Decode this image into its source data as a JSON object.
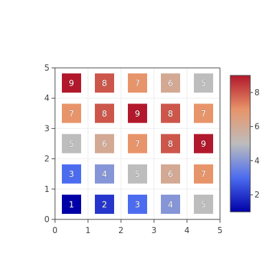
{
  "chart_data": {
    "type": "heatmap",
    "title": "",
    "xlabel": "",
    "ylabel": "",
    "x_ticks": [
      "0",
      "1",
      "2",
      "3",
      "4",
      "5"
    ],
    "y_ticks": [
      "0",
      "1",
      "2",
      "3",
      "4",
      "5"
    ],
    "xlim": [
      0,
      5
    ],
    "ylim": [
      0,
      5
    ],
    "cells": [
      {
        "x": 0.5,
        "y": 0.5,
        "value": 1,
        "label": "1"
      },
      {
        "x": 1.5,
        "y": 0.5,
        "value": 2,
        "label": "2"
      },
      {
        "x": 2.5,
        "y": 0.5,
        "value": 3,
        "label": "3"
      },
      {
        "x": 3.5,
        "y": 0.5,
        "value": 4,
        "label": "4"
      },
      {
        "x": 4.5,
        "y": 0.5,
        "value": 5,
        "label": "5"
      },
      {
        "x": 0.5,
        "y": 1.5,
        "value": 3,
        "label": "3"
      },
      {
        "x": 1.5,
        "y": 1.5,
        "value": 4,
        "label": "4"
      },
      {
        "x": 2.5,
        "y": 1.5,
        "value": 5,
        "label": "5"
      },
      {
        "x": 3.5,
        "y": 1.5,
        "value": 6,
        "label": "6"
      },
      {
        "x": 4.5,
        "y": 1.5,
        "value": 7,
        "label": "7"
      },
      {
        "x": 0.5,
        "y": 2.5,
        "value": 5,
        "label": "5"
      },
      {
        "x": 1.5,
        "y": 2.5,
        "value": 6,
        "label": "6"
      },
      {
        "x": 2.5,
        "y": 2.5,
        "value": 7,
        "label": "7"
      },
      {
        "x": 3.5,
        "y": 2.5,
        "value": 8,
        "label": "8"
      },
      {
        "x": 4.5,
        "y": 2.5,
        "value": 9,
        "label": "9"
      },
      {
        "x": 0.5,
        "y": 3.5,
        "value": 7,
        "label": "7"
      },
      {
        "x": 1.5,
        "y": 3.5,
        "value": 8,
        "label": "8"
      },
      {
        "x": 2.5,
        "y": 3.5,
        "value": 9,
        "label": "9"
      },
      {
        "x": 3.5,
        "y": 3.5,
        "value": 8,
        "label": "8"
      },
      {
        "x": 4.5,
        "y": 3.5,
        "value": 7,
        "label": "7"
      },
      {
        "x": 0.5,
        "y": 4.5,
        "value": 9,
        "label": "9"
      },
      {
        "x": 1.5,
        "y": 4.5,
        "value": 8,
        "label": "8"
      },
      {
        "x": 2.5,
        "y": 4.5,
        "value": 7,
        "label": "7"
      },
      {
        "x": 3.5,
        "y": 4.5,
        "value": 6,
        "label": "6"
      },
      {
        "x": 4.5,
        "y": 4.5,
        "value": 5,
        "label": "5"
      }
    ],
    "colorscale": {
      "name": "coolwarm",
      "min": 1,
      "max": 9,
      "ticks": [
        "2",
        "4",
        "6",
        "8"
      ],
      "stops": [
        "#0000a8",
        "#4c6cf0",
        "#bdbdbd",
        "#e8946a",
        "#b2182b"
      ]
    },
    "grid": true,
    "legend": "colorbar-right"
  }
}
